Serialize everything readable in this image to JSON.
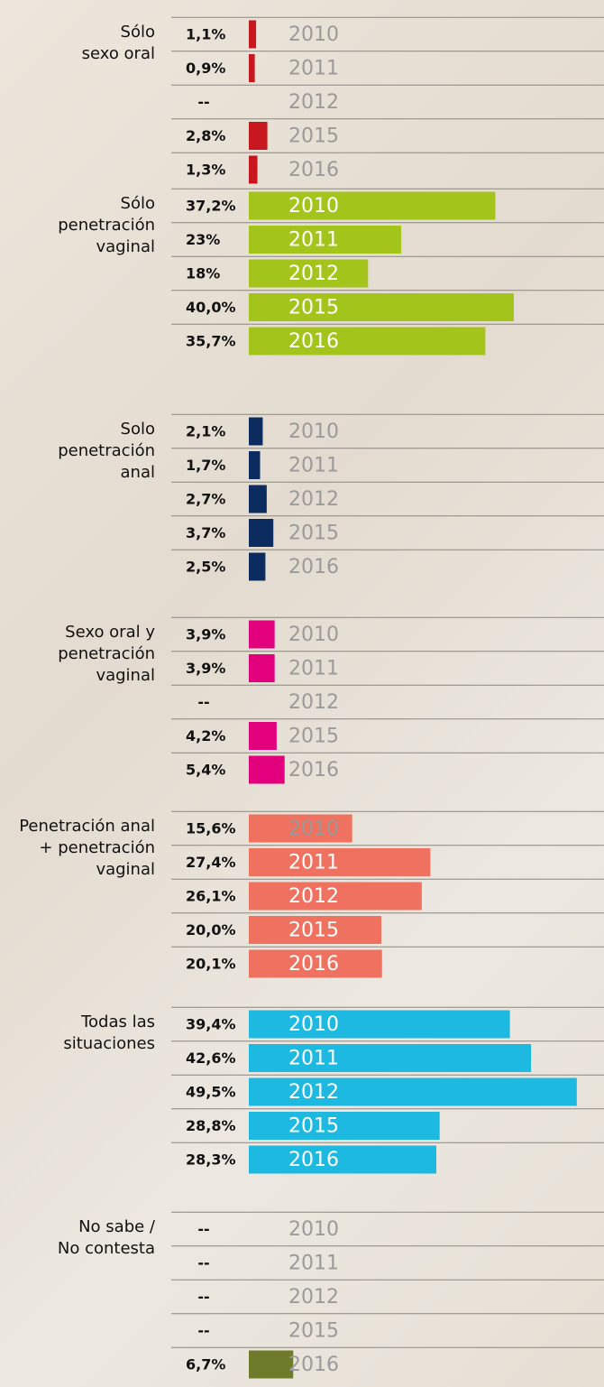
{
  "chart_data": {
    "type": "bar",
    "groups": [
      {
        "label": [
          "Sólo",
          "sexo oral"
        ],
        "color": "#c8171e",
        "categories": [
          "2010",
          "2011",
          "2012",
          "2015",
          "2016"
        ],
        "values": [
          1.1,
          0.9,
          null,
          2.8,
          1.3
        ],
        "value_labels": [
          "1,1%",
          "0,9%",
          "--",
          "2,8%",
          "1,3%"
        ]
      },
      {
        "label": [
          "Sólo",
          "penetración",
          "vaginal"
        ],
        "color": "#a3c51b",
        "categories": [
          "2010",
          "2011",
          "2012",
          "2015",
          "2016"
        ],
        "values": [
          37.2,
          23,
          18,
          40.0,
          35.7
        ],
        "value_labels": [
          "37,2%",
          "23%",
          "18%",
          "40,0%",
          "35,7%"
        ]
      },
      {
        "label": [
          "Solo",
          "penetración",
          "anal"
        ],
        "color": "#0c2c5f",
        "categories": [
          "2010",
          "2011",
          "2012",
          "2015",
          "2016"
        ],
        "values": [
          2.1,
          1.7,
          2.7,
          3.7,
          2.5
        ],
        "value_labels": [
          "2,1%",
          "1,7%",
          "2,7%",
          "3,7%",
          "2,5%"
        ]
      },
      {
        "label": [
          "Sexo oral y",
          "penetración",
          "vaginal"
        ],
        "color": "#e2007d",
        "categories": [
          "2010",
          "2011",
          "2012",
          "2015",
          "2016"
        ],
        "values": [
          3.9,
          3.9,
          null,
          4.2,
          5.4
        ],
        "value_labels": [
          "3,9%",
          "3,9%",
          "--",
          "4,2%",
          "5,4%"
        ]
      },
      {
        "label": [
          "Penetración anal",
          "+ penetración",
          "vaginal"
        ],
        "color": "#ef7160",
        "categories": [
          "2010",
          "2011",
          "2012",
          "2015",
          "2016"
        ],
        "values": [
          15.6,
          27.4,
          26.1,
          20.0,
          20.1
        ],
        "value_labels": [
          "15,6%",
          "27,4%",
          "26,1%",
          "20,0%",
          "20,1%"
        ]
      },
      {
        "label": [
          "Todas las",
          "situaciones"
        ],
        "color": "#1db9e1",
        "categories": [
          "2010",
          "2011",
          "2012",
          "2015",
          "2016"
        ],
        "values": [
          39.4,
          42.6,
          49.5,
          28.8,
          28.3
        ],
        "value_labels": [
          "39,4%",
          "42,6%",
          "49,5%",
          "28,8%",
          "28,3%"
        ]
      },
      {
        "label": [
          "No sabe /",
          "No contesta"
        ],
        "color": "#6e7b2b",
        "categories": [
          "2010",
          "2011",
          "2012",
          "2015",
          "2016"
        ],
        "values": [
          null,
          null,
          null,
          null,
          6.7
        ],
        "value_labels": [
          "--",
          "--",
          "--",
          "--",
          "6,7%"
        ]
      }
    ]
  }
}
